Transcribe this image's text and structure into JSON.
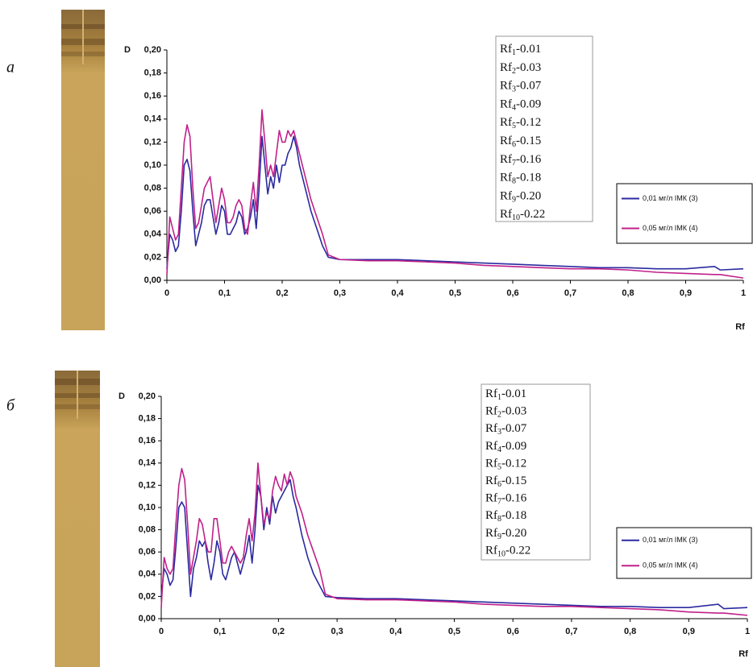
{
  "chart_data": [
    {
      "type": "line",
      "panel_label": "а",
      "ylabel": "D",
      "xlabel": "Rf",
      "ylim": [
        0,
        0.2
      ],
      "yticks": [
        {
          "value": 0,
          "label": "0,00"
        },
        {
          "value": 0.02,
          "label": "0,02"
        },
        {
          "value": 0.04,
          "label": "0,04"
        },
        {
          "value": 0.06,
          "label": "0,06"
        },
        {
          "value": 0.08,
          "label": "0,08"
        },
        {
          "value": 0.1,
          "label": "0,10"
        },
        {
          "value": 0.12,
          "label": "0,12"
        },
        {
          "value": 0.14,
          "label": "0,14"
        },
        {
          "value": 0.16,
          "label": "0,16"
        },
        {
          "value": 0.18,
          "label": "0,18"
        },
        {
          "value": 0.2,
          "label": "0,20"
        }
      ],
      "xlim": [
        0,
        1
      ],
      "xticks": [
        0,
        {
          "value": 0.1,
          "label": "0,1"
        },
        {
          "value": 0.2,
          "label": "0,2"
        },
        {
          "value": 0.3,
          "label": "0,3"
        },
        {
          "value": 0.4,
          "label": "0,4"
        },
        {
          "value": 0.5,
          "label": "0,5"
        },
        {
          "value": 0.6,
          "label": "0,6"
        },
        {
          "value": 0.7,
          "label": "0,7"
        },
        {
          "value": 0.8,
          "label": "0,8"
        },
        {
          "value": 0.9,
          "label": "0,9"
        },
        1
      ],
      "legend_position": "right",
      "annotation_lines": [
        {
          "base": "Rf",
          "sub": "1",
          "rest": "-0.01"
        },
        {
          "base": "Rf",
          "sub": "2",
          "rest": "-0.03"
        },
        {
          "base": "Rf",
          "sub": "3",
          "rest": "-0.07"
        },
        {
          "base": "Rf",
          "sub": "4",
          "rest": "-0.09"
        },
        {
          "base": "Rf",
          "sub": "5",
          "rest": "-0.12"
        },
        {
          "base": "Rf",
          "sub": "6",
          "rest": "-0.15"
        },
        {
          "base": "Rf",
          "sub": "7",
          "rest": "-0.16"
        },
        {
          "base": "Rf",
          "sub": "8",
          "rest": "-0.18"
        },
        {
          "base": "Rf",
          "sub": "9",
          "rest": "-0.20"
        },
        {
          "base": "Rf",
          "sub": "10",
          "rest": "-0.22"
        }
      ],
      "x": [
        0,
        0.005,
        0.01,
        0.015,
        0.02,
        0.025,
        0.03,
        0.035,
        0.04,
        0.045,
        0.05,
        0.055,
        0.06,
        0.065,
        0.07,
        0.075,
        0.08,
        0.085,
        0.09,
        0.095,
        0.1,
        0.105,
        0.11,
        0.115,
        0.12,
        0.125,
        0.13,
        0.135,
        0.14,
        0.145,
        0.15,
        0.155,
        0.16,
        0.165,
        0.17,
        0.175,
        0.18,
        0.185,
        0.19,
        0.195,
        0.2,
        0.205,
        0.21,
        0.215,
        0.22,
        0.225,
        0.23,
        0.24,
        0.25,
        0.26,
        0.27,
        0.28,
        0.3,
        0.35,
        0.4,
        0.45,
        0.5,
        0.55,
        0.6,
        0.65,
        0.7,
        0.75,
        0.8,
        0.85,
        0.9,
        0.95,
        0.96,
        1
      ],
      "series": [
        {
          "name": "0,01 мг/л ІМК (3)",
          "color": "#2a2aa0",
          "values": [
            0.01,
            0.04,
            0.035,
            0.025,
            0.03,
            0.06,
            0.1,
            0.105,
            0.095,
            0.06,
            0.03,
            0.04,
            0.05,
            0.065,
            0.07,
            0.07,
            0.055,
            0.04,
            0.05,
            0.065,
            0.06,
            0.04,
            0.04,
            0.045,
            0.05,
            0.06,
            0.055,
            0.04,
            0.045,
            0.055,
            0.07,
            0.045,
            0.08,
            0.125,
            0.1,
            0.075,
            0.09,
            0.08,
            0.1,
            0.085,
            0.1,
            0.1,
            0.11,
            0.115,
            0.125,
            0.115,
            0.1,
            0.08,
            0.06,
            0.045,
            0.03,
            0.02,
            0.018,
            0.018,
            0.018,
            0.017,
            0.016,
            0.015,
            0.014,
            0.013,
            0.012,
            0.011,
            0.011,
            0.01,
            0.01,
            0.012,
            0.009,
            0.01
          ]
        },
        {
          "name": "0,05 мг/л ІМК (4)",
          "color": "#c0208a",
          "values": [
            0.005,
            0.055,
            0.045,
            0.035,
            0.04,
            0.08,
            0.12,
            0.135,
            0.125,
            0.08,
            0.045,
            0.05,
            0.065,
            0.08,
            0.085,
            0.09,
            0.07,
            0.05,
            0.065,
            0.08,
            0.07,
            0.05,
            0.05,
            0.055,
            0.065,
            0.07,
            0.065,
            0.045,
            0.04,
            0.065,
            0.085,
            0.06,
            0.1,
            0.148,
            0.12,
            0.09,
            0.1,
            0.09,
            0.11,
            0.13,
            0.12,
            0.12,
            0.13,
            0.125,
            0.13,
            0.12,
            0.11,
            0.09,
            0.07,
            0.055,
            0.04,
            0.022,
            0.018,
            0.017,
            0.017,
            0.016,
            0.015,
            0.013,
            0.012,
            0.011,
            0.01,
            0.01,
            0.009,
            0.007,
            0.006,
            0.005,
            0.005,
            0.002
          ]
        }
      ]
    },
    {
      "type": "line",
      "panel_label": "б",
      "ylabel": "D",
      "xlabel": "Rf",
      "ylim": [
        0,
        0.2
      ],
      "yticks": [
        {
          "value": 0,
          "label": "0,00"
        },
        {
          "value": 0.02,
          "label": "0,02"
        },
        {
          "value": 0.04,
          "label": "0,04"
        },
        {
          "value": 0.06,
          "label": "0,06"
        },
        {
          "value": 0.08,
          "label": "0,08"
        },
        {
          "value": 0.1,
          "label": "0,10"
        },
        {
          "value": 0.12,
          "label": "0,12"
        },
        {
          "value": 0.14,
          "label": "0,14"
        },
        {
          "value": 0.16,
          "label": "0,16"
        },
        {
          "value": 0.18,
          "label": "0,18"
        },
        {
          "value": 0.2,
          "label": "0,20"
        }
      ],
      "xlim": [
        0,
        1
      ],
      "xticks": [
        0,
        {
          "value": 0.1,
          "label": "0,1"
        },
        {
          "value": 0.2,
          "label": "0,2"
        },
        {
          "value": 0.3,
          "label": "0,3"
        },
        {
          "value": 0.4,
          "label": "0,4"
        },
        {
          "value": 0.5,
          "label": "0,5"
        },
        {
          "value": 0.6,
          "label": "0,6"
        },
        {
          "value": 0.7,
          "label": "0,7"
        },
        {
          "value": 0.8,
          "label": "0,8"
        },
        {
          "value": 0.9,
          "label": "0,9"
        },
        1
      ],
      "legend_position": "right",
      "annotation_lines": [
        {
          "base": "Rf",
          "sub": "1",
          "rest": "-0.01"
        },
        {
          "base": "Rf",
          "sub": "2",
          "rest": "-0.03"
        },
        {
          "base": "Rf",
          "sub": "3",
          "rest": "-0.07"
        },
        {
          "base": "Rf",
          "sub": "4",
          "rest": "-0.09"
        },
        {
          "base": "Rf",
          "sub": "5",
          "rest": "-0.12"
        },
        {
          "base": "Rf",
          "sub": "6",
          "rest": "-0.15"
        },
        {
          "base": "Rf",
          "sub": "7",
          "rest": "-0.16"
        },
        {
          "base": "Rf",
          "sub": "8",
          "rest": "-0.18"
        },
        {
          "base": "Rf",
          "sub": "9",
          "rest": "-0.20"
        },
        {
          "base": "Rf",
          "sub": "10",
          "rest": "-0.22"
        }
      ],
      "x": [
        0,
        0.005,
        0.01,
        0.015,
        0.02,
        0.025,
        0.03,
        0.035,
        0.04,
        0.045,
        0.05,
        0.055,
        0.06,
        0.065,
        0.07,
        0.075,
        0.08,
        0.085,
        0.09,
        0.095,
        0.1,
        0.105,
        0.11,
        0.115,
        0.12,
        0.125,
        0.13,
        0.135,
        0.14,
        0.145,
        0.15,
        0.155,
        0.16,
        0.165,
        0.17,
        0.175,
        0.18,
        0.185,
        0.19,
        0.195,
        0.2,
        0.205,
        0.21,
        0.215,
        0.22,
        0.225,
        0.23,
        0.24,
        0.25,
        0.26,
        0.27,
        0.28,
        0.3,
        0.35,
        0.4,
        0.45,
        0.5,
        0.55,
        0.6,
        0.65,
        0.7,
        0.75,
        0.8,
        0.85,
        0.9,
        0.95,
        0.96,
        1
      ],
      "series": [
        {
          "name": "0,01 мг/л ІМК (3)",
          "color": "#2a2aa0",
          "values": [
            0.02,
            0.045,
            0.04,
            0.03,
            0.035,
            0.065,
            0.1,
            0.105,
            0.1,
            0.06,
            0.02,
            0.045,
            0.055,
            0.07,
            0.065,
            0.07,
            0.05,
            0.035,
            0.05,
            0.07,
            0.06,
            0.04,
            0.035,
            0.045,
            0.055,
            0.06,
            0.05,
            0.04,
            0.05,
            0.06,
            0.075,
            0.05,
            0.08,
            0.12,
            0.11,
            0.08,
            0.1,
            0.085,
            0.11,
            0.095,
            0.105,
            0.11,
            0.115,
            0.12,
            0.125,
            0.11,
            0.1,
            0.075,
            0.055,
            0.04,
            0.03,
            0.02,
            0.019,
            0.018,
            0.018,
            0.017,
            0.016,
            0.015,
            0.014,
            0.013,
            0.012,
            0.011,
            0.011,
            0.01,
            0.01,
            0.013,
            0.009,
            0.01
          ]
        },
        {
          "name": "0,05 мг/л ІМК (4)",
          "color": "#c0208a",
          "values": [
            0.01,
            0.055,
            0.045,
            0.04,
            0.045,
            0.085,
            0.12,
            0.135,
            0.125,
            0.085,
            0.04,
            0.055,
            0.07,
            0.09,
            0.085,
            0.07,
            0.06,
            0.06,
            0.09,
            0.09,
            0.07,
            0.05,
            0.05,
            0.06,
            0.065,
            0.06,
            0.055,
            0.05,
            0.055,
            0.075,
            0.09,
            0.07,
            0.095,
            0.14,
            0.11,
            0.085,
            0.095,
            0.09,
            0.115,
            0.128,
            0.12,
            0.115,
            0.13,
            0.12,
            0.132,
            0.125,
            0.11,
            0.095,
            0.075,
            0.06,
            0.045,
            0.022,
            0.018,
            0.017,
            0.017,
            0.016,
            0.015,
            0.013,
            0.012,
            0.011,
            0.011,
            0.01,
            0.009,
            0.008,
            0.006,
            0.005,
            0.005,
            0.003
          ]
        }
      ]
    }
  ]
}
